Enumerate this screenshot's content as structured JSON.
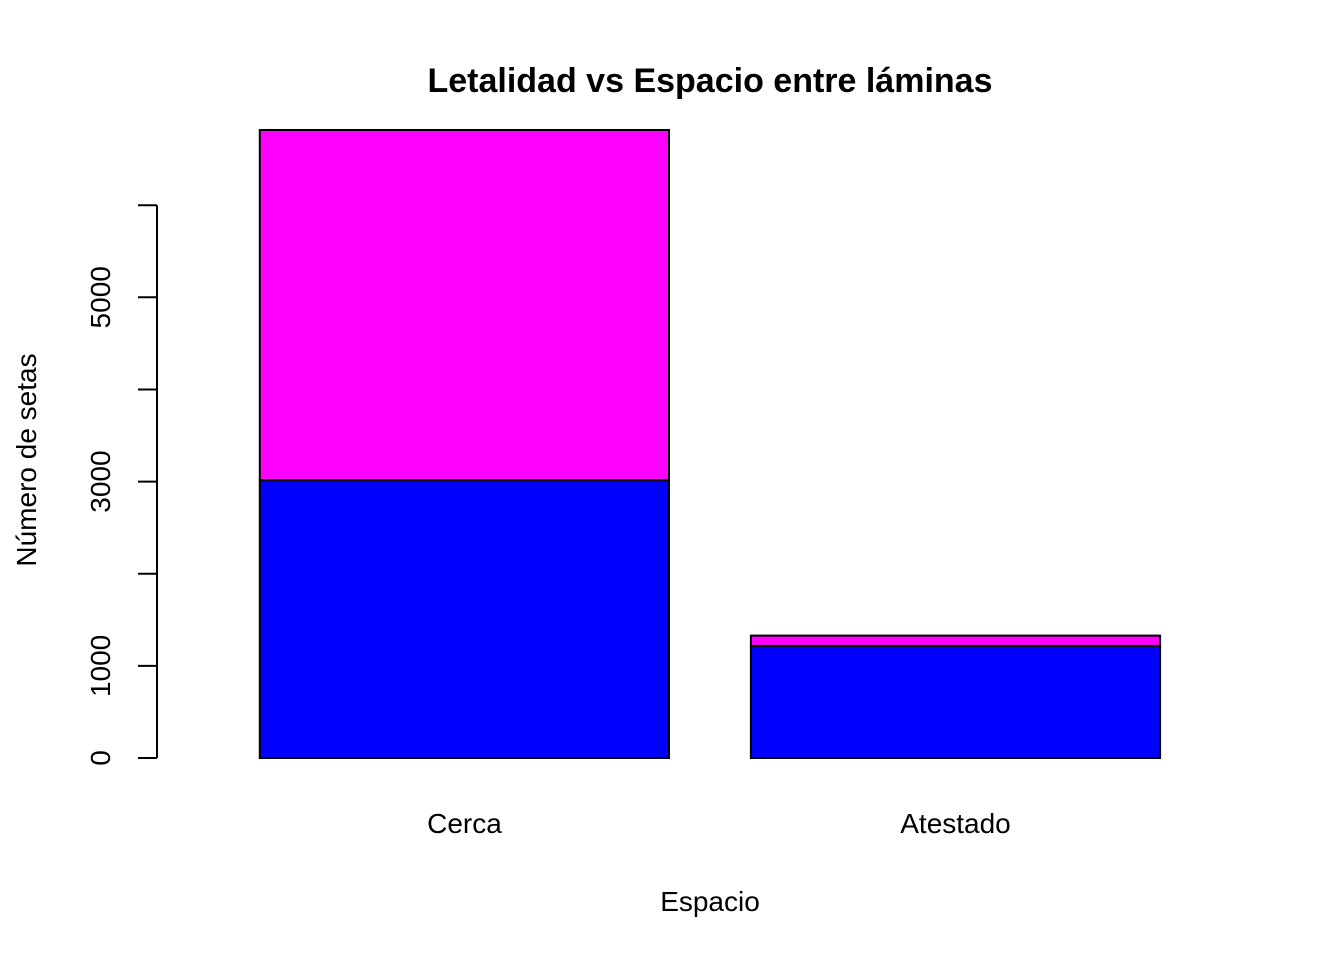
{
  "chart_data": {
    "type": "bar",
    "stacked": true,
    "title": "Letalidad vs Espacio entre láminas",
    "xlabel": "Espacio",
    "ylabel": "Número de setas",
    "categories": [
      "Cerca",
      "Atestado"
    ],
    "series": [
      {
        "color": "#0000FF",
        "values": [
          3016,
          1216
        ]
      },
      {
        "color": "#FF00FF",
        "values": [
          3800,
          112
        ]
      }
    ],
    "y_ticks": [
      0,
      1000,
      2000,
      3000,
      4000,
      5000,
      6000
    ],
    "y_tick_labels": [
      "0",
      "1000",
      "",
      "3000",
      "",
      "5000",
      ""
    ],
    "ylim": [
      0,
      6816
    ],
    "grid": false,
    "legend": "none"
  }
}
